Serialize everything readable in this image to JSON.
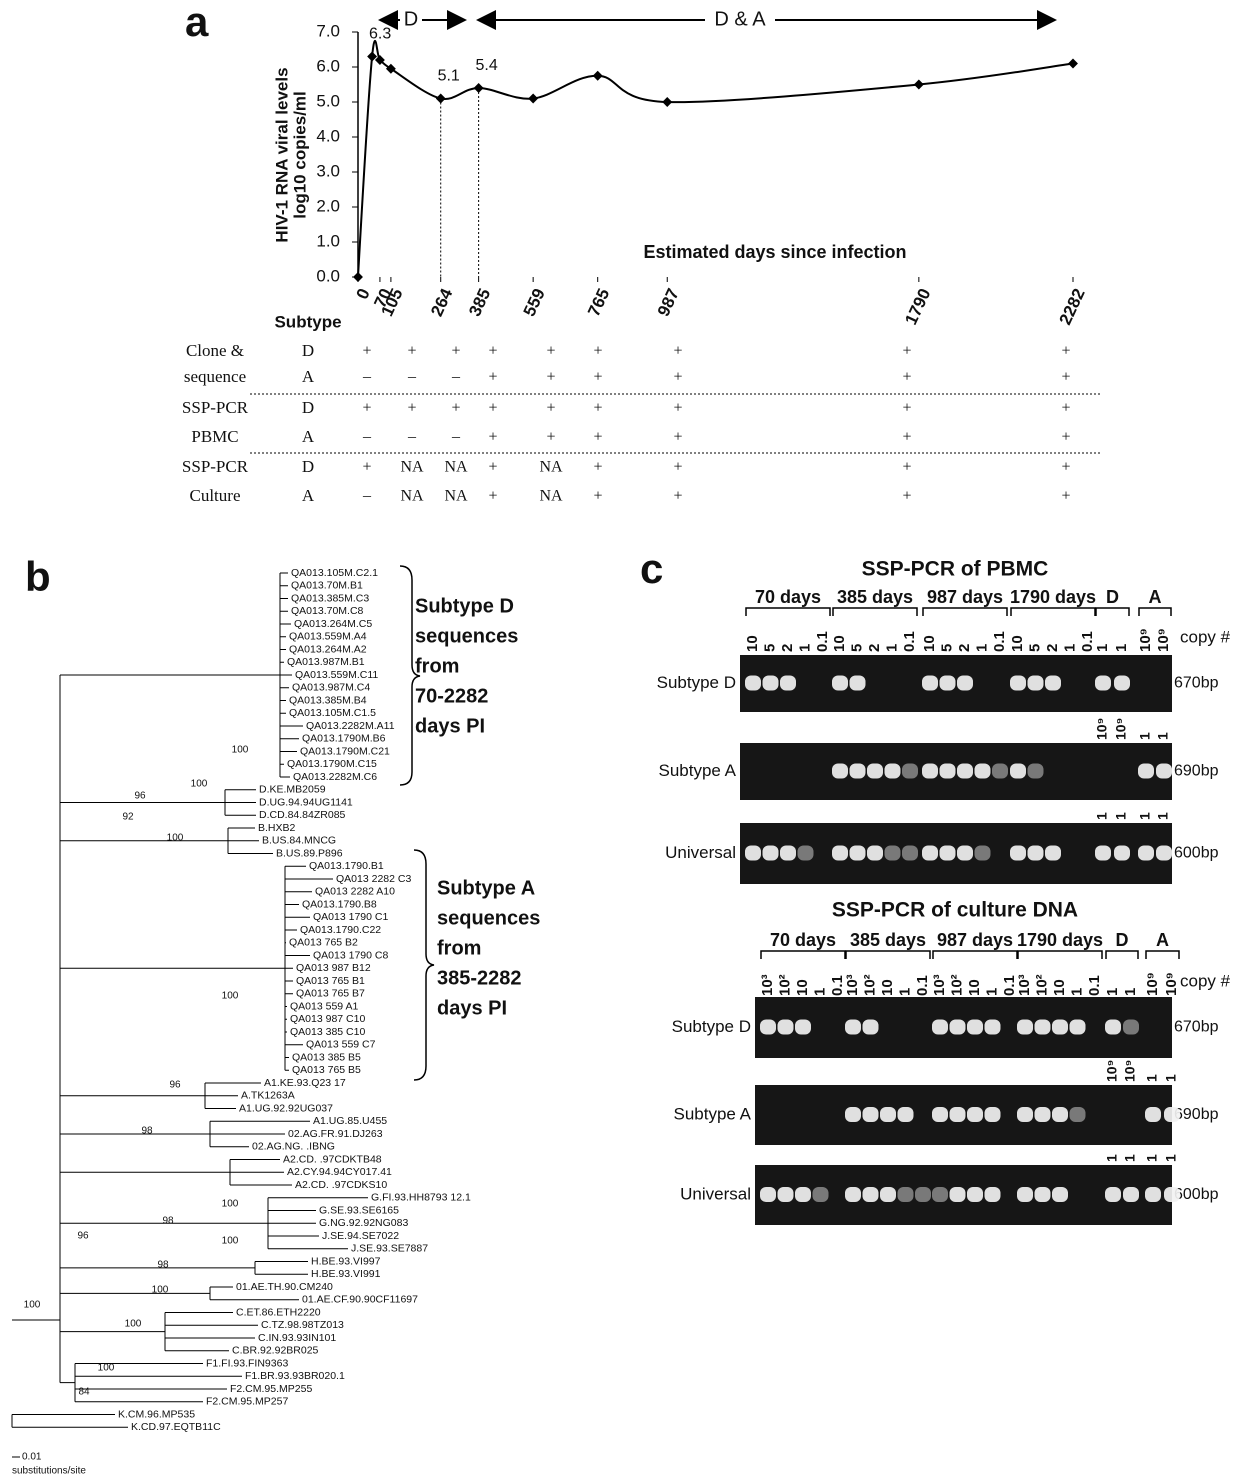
{
  "panel_a": {
    "label": "a",
    "arrow_d": "D",
    "arrow_da": "D & A"
  },
  "chart_data": {
    "type": "line",
    "xlabel": "Estimated days since infection",
    "ylabel": [
      "HIV-1 RNA viral levels",
      "log10 copies/ml"
    ],
    "x": [
      0,
      45,
      70,
      105,
      264,
      385,
      559,
      765,
      987,
      1790,
      2282
    ],
    "values": [
      0,
      6.3,
      6.2,
      5.95,
      5.1,
      5.4,
      5.1,
      5.75,
      5.0,
      5.5,
      6.1
    ],
    "value_labels": [
      null,
      "6.3",
      null,
      null,
      "5.1",
      "5.4",
      null,
      null,
      null,
      null,
      null
    ],
    "color": "#000000",
    "xlim": [
      0,
      2282
    ],
    "xticks": [
      0,
      70,
      105,
      264,
      385,
      559,
      765,
      987,
      1790,
      2282
    ],
    "ylim": [
      0,
      7
    ],
    "yticks": [
      {
        "value": 0,
        "label": "0.0"
      },
      {
        "value": 1,
        "label": "1.0"
      },
      {
        "value": 2,
        "label": "2.0"
      },
      {
        "value": 3,
        "label": "3.0"
      },
      {
        "value": 4,
        "label": "4.0"
      },
      {
        "value": 5,
        "label": "5.0"
      },
      {
        "value": 6,
        "label": "6.0"
      },
      {
        "value": 7,
        "label": "7.0"
      }
    ]
  },
  "table": {
    "header": "Subtype",
    "groups": [
      {
        "label": [
          "Clone &",
          "sequence"
        ],
        "rows": [
          {
            "subtype": "D",
            "cells": [
              "+",
              "+",
              "+",
              "+",
              "+",
              "+",
              "+",
              "+",
              "+"
            ]
          },
          {
            "subtype": "A",
            "cells": [
              "–",
              "–",
              "–",
              "+",
              "+",
              "+",
              "+",
              "+",
              "+"
            ]
          }
        ]
      },
      {
        "label": [
          "SSP-PCR",
          "PBMC"
        ],
        "rows": [
          {
            "subtype": "D",
            "cells": [
              "+",
              "+",
              "+",
              "+",
              "+",
              "+",
              "+",
              "+",
              "+"
            ]
          },
          {
            "subtype": "A",
            "cells": [
              "–",
              "–",
              "–",
              "+",
              "+",
              "+",
              "+",
              "+",
              "+"
            ]
          }
        ]
      },
      {
        "label": [
          "SSP-PCR",
          "Culture"
        ],
        "rows": [
          {
            "subtype": "D",
            "cells": [
              "+",
              "NA",
              "NA",
              "+",
              "NA",
              "+",
              "+",
              "+",
              "+"
            ]
          },
          {
            "subtype": "A",
            "cells": [
              "–",
              "NA",
              "NA",
              "+",
              "NA",
              "+",
              "+",
              "+",
              "+"
            ]
          }
        ]
      }
    ]
  },
  "tree": {
    "label": "b",
    "leaves": [
      "QA013.105M.C2.1",
      "QA013.70M.B1",
      "QA013.385M.C3",
      "QA013.70M.C8",
      "QA013.264M.C5",
      "QA013.559M.A4",
      "QA013.264M.A2",
      "QA013.987M.B1",
      "QA013.559M.C11",
      "QA013.987M.C4",
      "QA013.385M.B4",
      "QA013.105M.C1.5",
      "QA013.2282M.A11",
      "QA013.1790M.B6",
      "QA013.1790M.C21",
      "QA013.1790M.C15",
      "QA013.2282M.C6",
      "D.KE.MB2059",
      "D.UG.94.94UG1141",
      "D.CD.84.84ZR085",
      "B.HXB2",
      "B.US.84.MNCG",
      "B.US.89.P896",
      "QA013.1790.B1",
      "QA013 2282 C3",
      "QA013 2282 A10",
      "QA013.1790.B8",
      "QA013 1790 C1",
      "QA013.1790.C22",
      "QA013 765 B2",
      "QA013 1790 C8",
      "QA013 987 B12",
      "QA013 765 B1",
      "QA013 765 B7",
      "QA013 559 A1",
      "QA013 987 C10",
      "QA013 385 C10",
      "QA013 559 C7",
      "QA013 385 B5",
      "QA013 765 B5",
      "A1.KE.93.Q23 17",
      "A.TK1263A",
      "A1.UG.92.92UG037",
      "A1.UG.85.U455",
      "02.AG.FR.91.DJ263",
      "02.AG.NG. .IBNG",
      "A2.CD. .97CDKTB48",
      "A2.CY.94.94CY017.41",
      "A2.CD. .97CDKS10",
      "G.FI.93.HH8793 12.1",
      "G.SE.93.SE6165",
      "G.NG.92.92NG083",
      "J.SE.94.SE7022",
      "J.SE.93.SE7887",
      "H.BE.93.VI997",
      "H.BE.93.VI991",
      "01.AE.TH.90.CM240",
      "01.AE.CF.90.90CF11697",
      "C.ET.86.ETH2220",
      "C.TZ.98.98TZ013",
      "C.IN.93.93IN101",
      "C.BR.92.92BR025",
      "F1.FI.93.FIN9363",
      "F1.BR.93.93BR020.1",
      "F2.CM.95.MP255",
      "F2.CM.95.MP257",
      "K.CM.96.MP535",
      "K.CD.97.EQTB11C"
    ],
    "bootstrap": [
      100,
      100,
      96,
      92,
      100,
      100,
      96,
      98,
      100,
      98,
      100,
      98,
      96,
      100,
      100,
      100,
      100,
      84
    ],
    "brackets": [
      [
        "Subtype D",
        "sequences",
        "from",
        "70-2282",
        "days PI"
      ],
      [
        "Subtype A",
        "sequences",
        "from",
        "385-2282",
        "days PI"
      ]
    ],
    "scale": "0.01",
    "scale_unit": "substitutions/site"
  },
  "gel": {
    "label": "c",
    "copy": "copy #",
    "panels": [
      {
        "title": "SSP-PCR of PBMC",
        "groups": [
          "70 days",
          "385 days",
          "987 days",
          "1790 days",
          "D",
          "A"
        ],
        "lanes": [
          "10",
          "5",
          "2",
          "1",
          "0.1",
          "10",
          "5",
          "2",
          "1",
          "0.1",
          "10",
          "5",
          "2",
          "1",
          "0.1",
          "10",
          "5",
          "2",
          "1",
          "0.1",
          "1",
          "1",
          "10⁹",
          "10⁹"
        ],
        "rows": [
          {
            "name": "Subtype D",
            "size": "670bp",
            "above": []
          },
          {
            "name": "Subtype A",
            "size": "690bp",
            "above": [
              "10⁹",
              "10⁹",
              "1",
              "1"
            ]
          },
          {
            "name": "Universal",
            "size": "600bp",
            "above": [
              "1",
              "1",
              "1",
              "1"
            ]
          }
        ]
      },
      {
        "title": "SSP-PCR of culture DNA",
        "groups": [
          "70 days",
          "385 days",
          "987 days",
          "1790 days",
          "D",
          "A"
        ],
        "lanes": [
          "10³",
          "10²",
          "10",
          "1",
          "0.1",
          "10³",
          "10²",
          "10",
          "1",
          "0.1",
          "10³",
          "10²",
          "10",
          "1",
          "0.1",
          "10³",
          "10²",
          "10",
          "1",
          "0.1",
          "1",
          "1",
          "10⁹",
          "10⁹"
        ],
        "rows": [
          {
            "name": "Subtype D",
            "size": "670bp",
            "above": []
          },
          {
            "name": "Subtype A",
            "size": "690bp",
            "above": [
              "10⁹",
              "10⁹",
              "1",
              "1"
            ]
          },
          {
            "name": "Universal",
            "size": "600bp",
            "above": [
              "1",
              "1",
              "1",
              "1"
            ]
          }
        ]
      }
    ]
  }
}
